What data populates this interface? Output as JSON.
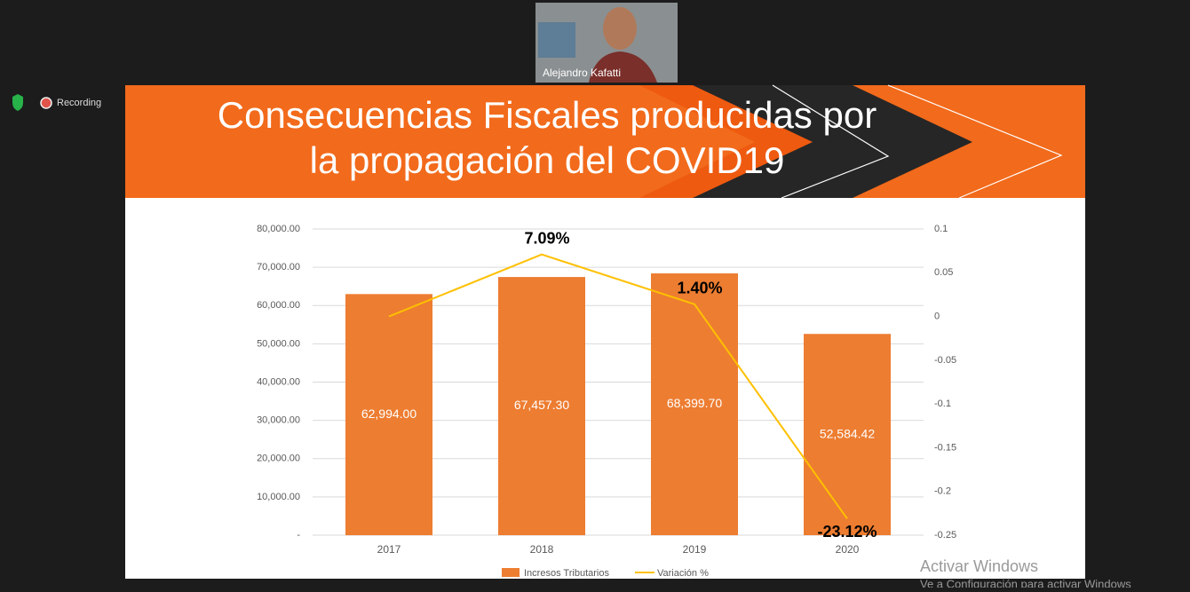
{
  "participant": {
    "name": "Alejandro Kafatti"
  },
  "recording": {
    "label": "Recording"
  },
  "slide": {
    "title_lines": [
      "Consecuencias Fiscales producidas por",
      "la propagación del COVID19"
    ]
  },
  "chart_data": {
    "type": "bar",
    "categories": [
      "2017",
      "2018",
      "2019",
      "2020"
    ],
    "series": [
      {
        "name": "Incresos Tributarios",
        "color": "#ed7d31",
        "type": "bar",
        "values": [
          62994.0,
          67457.3,
          68399.7,
          52584.42
        ],
        "value_labels": [
          "62,994.00",
          "67,457.30",
          "68,399.70",
          "52,584.42"
        ]
      },
      {
        "name": "Variación %",
        "color": "#ffc000",
        "type": "line",
        "axis": "y2",
        "values": [
          0,
          0.0709,
          0.014,
          -0.2312
        ],
        "value_labels": [
          null,
          "7.09%",
          "1.40%",
          "-23.12%"
        ]
      }
    ],
    "ylim": [
      0,
      80000
    ],
    "yticks": [
      {
        "value": 0,
        "label": "-"
      },
      {
        "value": 10000,
        "label": "10,000.00"
      },
      {
        "value": 20000,
        "label": "20,000.00"
      },
      {
        "value": 30000,
        "label": "30,000.00"
      },
      {
        "value": 40000,
        "label": "40,000.00"
      },
      {
        "value": 50000,
        "label": "50,000.00"
      },
      {
        "value": 60000,
        "label": "60,000.00"
      },
      {
        "value": 70000,
        "label": "70,000.00"
      },
      {
        "value": 80000,
        "label": "80,000.00"
      }
    ],
    "y2lim": [
      -0.25,
      0.1
    ],
    "y2ticks": [
      0.1,
      0.05,
      0,
      -0.05,
      -0.1,
      -0.15,
      -0.2,
      -0.25
    ],
    "grid": true,
    "legend": "bottom"
  },
  "watermark": {
    "lines": [
      "Activar Windows",
      "Ve a Configuración para activar Windows"
    ]
  }
}
